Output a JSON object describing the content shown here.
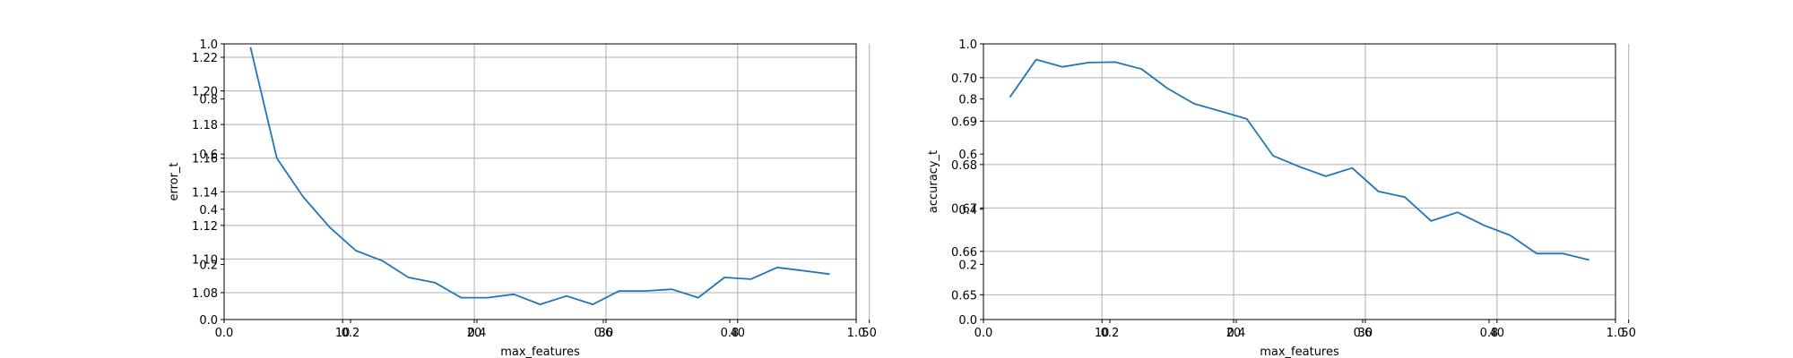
{
  "chart_data": [
    {
      "type": "line",
      "xlabel": "max_features",
      "ylabel": "error_t",
      "grid": true,
      "line_color": "#1f77b4",
      "xlim": [
        1,
        49
      ],
      "ylim": [
        1.064,
        1.228
      ],
      "x": [
        3,
        5,
        7,
        9,
        11,
        13,
        15,
        17,
        19,
        21,
        23,
        25,
        27,
        29,
        31,
        33,
        35,
        37,
        39,
        41,
        43,
        45,
        47
      ],
      "values": [
        1.226,
        1.16,
        1.137,
        1.119,
        1.105,
        1.099,
        1.089,
        1.086,
        1.077,
        1.077,
        1.079,
        1.073,
        1.078,
        1.073,
        1.081,
        1.081,
        1.082,
        1.077,
        1.089,
        1.088,
        1.095,
        1.093,
        1.091
      ],
      "xticks": [
        "10",
        "20",
        "30",
        "40",
        "50"
      ],
      "yticks": [
        "1.08",
        "1.10",
        "1.12",
        "1.14",
        "1.16",
        "1.18",
        "1.20",
        "1.22"
      ],
      "overlay_xticks": [
        "0.0",
        "0.2",
        "0.4",
        "0.6",
        "0.8",
        "1.0"
      ],
      "overlay_yticks": [
        "0.0",
        "0.2",
        "0.4",
        "0.6",
        "0.8",
        "1.0"
      ]
    },
    {
      "type": "line",
      "xlabel": "max_features",
      "ylabel": "accuracy_t",
      "grid": true,
      "line_color": "#1f77b4",
      "xlim": [
        1,
        49
      ],
      "ylim": [
        0.6443,
        0.7078
      ],
      "x": [
        3,
        5,
        7,
        9,
        11,
        13,
        15,
        17,
        19,
        21,
        23,
        25,
        27,
        29,
        31,
        33,
        35,
        37,
        39,
        41,
        43,
        45,
        47
      ],
      "values": [
        0.6955,
        0.7042,
        0.7025,
        0.7035,
        0.7036,
        0.702,
        0.6975,
        0.694,
        0.6923,
        0.6905,
        0.682,
        0.6795,
        0.6773,
        0.6792,
        0.6738,
        0.6725,
        0.667,
        0.669,
        0.666,
        0.6637,
        0.6595,
        0.6595,
        0.658
      ],
      "xticks": [
        "10",
        "20",
        "30",
        "40",
        "50"
      ],
      "yticks": [
        "0.65",
        "0.66",
        "0.67",
        "0.68",
        "0.69",
        "0.70"
      ],
      "overlay_xticks": [
        "0.0",
        "0.2",
        "0.4",
        "0.6",
        "0.8",
        "1.0"
      ],
      "overlay_yticks": [
        "0.0",
        "0.2",
        "0.4",
        "0.6",
        "0.8",
        "1.0"
      ]
    }
  ]
}
